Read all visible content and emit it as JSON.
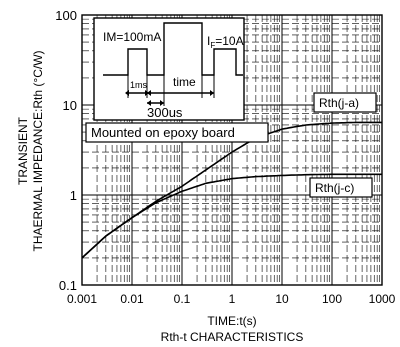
{
  "chart_data": {
    "type": "line",
    "xscale": "log",
    "yscale": "log",
    "xlim": [
      0.001,
      1000
    ],
    "ylim": [
      0.1,
      100
    ],
    "grid": true,
    "xlabel": "TIME:t(s)",
    "ylabel_lines": [
      "TRANSIENT",
      "THAERMAL IMPEDANCE:Rth (°C/W)"
    ],
    "caption": "Rth-t CHARACTERISTICS",
    "x_ticks": [
      "0.001",
      "0.01",
      "0.1",
      "1",
      "10",
      "100",
      "1000"
    ],
    "y_ticks": [
      "0.1",
      "1",
      "10",
      "100"
    ],
    "series": [
      {
        "name": "Rth(j-a)",
        "x": [
          0.001,
          0.003,
          0.01,
          0.03,
          0.1,
          0.3,
          1,
          3,
          10,
          30,
          100,
          300,
          1000
        ],
        "y": [
          0.2,
          0.35,
          0.56,
          0.85,
          1.25,
          1.9,
          3.0,
          4.3,
          5.4,
          6.0,
          6.3,
          6.4,
          6.4
        ]
      },
      {
        "name": "Rth(j-c)",
        "x": [
          0.001,
          0.003,
          0.01,
          0.03,
          0.1,
          0.3,
          1,
          3,
          10,
          30,
          100,
          300,
          1000
        ],
        "y": [
          0.2,
          0.35,
          0.56,
          0.82,
          1.1,
          1.35,
          1.52,
          1.6,
          1.65,
          1.68,
          1.7,
          1.7,
          1.7
        ]
      }
    ],
    "annotations": {
      "inset": {
        "im_label": "IM=100mA",
        "if_label_main": "I",
        "if_label_sub": "F",
        "if_label_value": "=10A",
        "pulse_label": "1ms",
        "time_label": "time",
        "delay_label": "300us"
      },
      "mount_label": "Mounted on epoxy board"
    }
  }
}
